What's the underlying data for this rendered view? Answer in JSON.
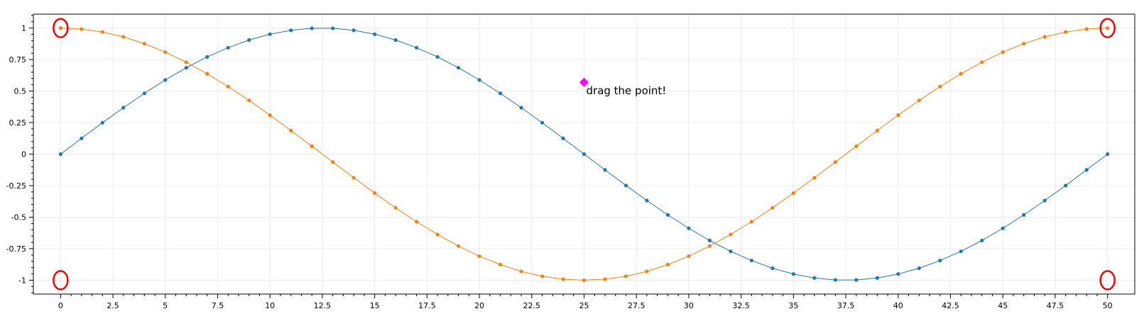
{
  "chart_data": {
    "type": "line",
    "title": "",
    "xlabel": "",
    "ylabel": "",
    "xlim": [
      -1.3,
      51.3
    ],
    "ylim": [
      -1.11,
      1.11
    ],
    "grid": true,
    "x_ticks": [
      0,
      2.5,
      5,
      7.5,
      10,
      12.5,
      15,
      17.5,
      20,
      22.5,
      25,
      27.5,
      30,
      32.5,
      35,
      37.5,
      40,
      42.5,
      45,
      47.5,
      50
    ],
    "x_tick_labels": [
      "0",
      "2.5",
      "5",
      "7.5",
      "10",
      "12.5",
      "15",
      "17.5",
      "20",
      "22.5",
      "25",
      "27.5",
      "30",
      "32.5",
      "35",
      "37.5",
      "40",
      "42.5",
      "45",
      "47.5",
      "50"
    ],
    "y_ticks": [
      1,
      0.75,
      0.5,
      0.25,
      0,
      -0.25,
      -0.5,
      -0.75,
      -1
    ],
    "y_tick_labels": [
      "1",
      "0.75",
      "0.5",
      "0.25",
      "0",
      "-0.25",
      "-0.5",
      "-0.75",
      "-1"
    ],
    "series": [
      {
        "color": "#1f77b4",
        "x": [
          0,
          1,
          2,
          3,
          4,
          5,
          6,
          7,
          8,
          9,
          10,
          11,
          12,
          13,
          14,
          15,
          16,
          17,
          18,
          19,
          20,
          21,
          22,
          23,
          24,
          25,
          26,
          27,
          28,
          29,
          30,
          31,
          32,
          33,
          34,
          35,
          36,
          37,
          38,
          39,
          40,
          41,
          42,
          43,
          44,
          45,
          46,
          47,
          48,
          49,
          50
        ],
        "y": [
          0,
          0.125,
          0.249,
          0.368,
          0.482,
          0.588,
          0.685,
          0.771,
          0.844,
          0.905,
          0.951,
          0.982,
          0.998,
          0.998,
          0.982,
          0.951,
          0.905,
          0.844,
          0.771,
          0.685,
          0.588,
          0.482,
          0.368,
          0.249,
          0.125,
          0,
          -0.125,
          -0.249,
          -0.368,
          -0.482,
          -0.588,
          -0.685,
          -0.771,
          -0.844,
          -0.905,
          -0.951,
          -0.982,
          -0.998,
          -0.998,
          -0.982,
          -0.951,
          -0.905,
          -0.844,
          -0.771,
          -0.685,
          -0.588,
          -0.482,
          -0.368,
          -0.249,
          -0.125,
          0
        ]
      },
      {
        "color": "#ff7f0e",
        "x": [
          0,
          1,
          2,
          3,
          4,
          5,
          6,
          7,
          8,
          9,
          10,
          11,
          12,
          13,
          14,
          15,
          16,
          17,
          18,
          19,
          20,
          21,
          22,
          23,
          24,
          25,
          26,
          27,
          28,
          29,
          30,
          31,
          32,
          33,
          34,
          35,
          36,
          37,
          38,
          39,
          40,
          41,
          42,
          43,
          44,
          45,
          46,
          47,
          48,
          49,
          50
        ],
        "y": [
          1,
          0.992,
          0.969,
          0.93,
          0.876,
          0.809,
          0.729,
          0.637,
          0.536,
          0.426,
          0.309,
          0.187,
          0.063,
          -0.063,
          -0.187,
          -0.309,
          -0.426,
          -0.536,
          -0.637,
          -0.729,
          -0.809,
          -0.876,
          -0.93,
          -0.969,
          -0.992,
          -1,
          -0.992,
          -0.969,
          -0.93,
          -0.876,
          -0.809,
          -0.729,
          -0.637,
          -0.536,
          -0.426,
          -0.309,
          -0.187,
          -0.063,
          0.063,
          0.187,
          0.309,
          0.426,
          0.536,
          0.637,
          0.729,
          0.809,
          0.876,
          0.93,
          0.969,
          0.992,
          1
        ]
      }
    ],
    "corner_markers": [
      {
        "x": 0,
        "y": 1,
        "color": "#ff0000"
      },
      {
        "x": 50,
        "y": 1,
        "color": "#ff0000"
      },
      {
        "x": 0,
        "y": -1,
        "color": "#ff0000"
      },
      {
        "x": 50,
        "y": -1,
        "color": "#ff0000"
      }
    ],
    "draggable_point": {
      "x": 25,
      "y": 0.57,
      "color": "#ff00ff",
      "label": "drag the point!"
    }
  }
}
